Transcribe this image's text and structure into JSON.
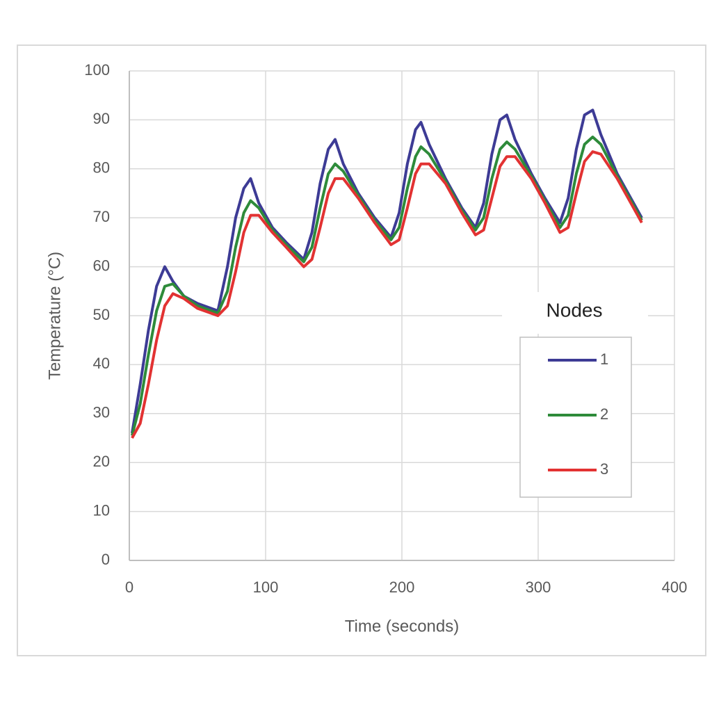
{
  "chart_data": {
    "type": "line",
    "x_label": "Time (seconds)",
    "y_label": "Temperature  (°C)",
    "xlim": [
      0,
      400
    ],
    "xticks": [
      0,
      100,
      200,
      300,
      400
    ],
    "ylim": [
      0,
      100
    ],
    "yticks": [
      0,
      10,
      20,
      30,
      40,
      50,
      60,
      70,
      80,
      90,
      100
    ],
    "grid": true,
    "legend_title": "Nodes",
    "legend_position": "right",
    "x": [
      2,
      8,
      14,
      20,
      26,
      32,
      40,
      50,
      65,
      72,
      78,
      84,
      89,
      95,
      105,
      115,
      128,
      134,
      140,
      146,
      151,
      157,
      168,
      180,
      192,
      198,
      204,
      210,
      214,
      220,
      232,
      244,
      254,
      260,
      266,
      272,
      277,
      283,
      295,
      305,
      316,
      322,
      328,
      334,
      340,
      346,
      358,
      368,
      376
    ],
    "series": [
      {
        "name": "1",
        "color": "#3d3b95",
        "values": [
          26,
          36,
          47,
          56,
          60,
          57,
          54,
          52.5,
          51,
          60,
          70,
          76,
          78,
          73,
          68,
          65,
          61.5,
          67,
          77,
          84,
          86,
          81,
          75,
          70,
          66,
          71,
          81,
          88,
          89.5,
          85,
          78,
          72,
          68,
          73,
          83,
          90,
          91,
          86,
          79,
          74,
          69,
          74,
          84,
          91,
          92,
          87,
          79,
          74,
          70
        ]
      },
      {
        "name": "2",
        "color": "#2e8b3a",
        "values": [
          25.5,
          32,
          42,
          51,
          56,
          56.5,
          54,
          52,
          50.5,
          55,
          64,
          71,
          73.5,
          72,
          67.5,
          64.5,
          61,
          64,
          72,
          79,
          81,
          79.5,
          74.5,
          69.5,
          65.5,
          68,
          76,
          82.5,
          84.5,
          83,
          77.5,
          71.5,
          67.5,
          70,
          78,
          84,
          85.5,
          84,
          78.5,
          73.5,
          68,
          70.5,
          79,
          85,
          86.5,
          85,
          78.5,
          73.5,
          69.5
        ]
      },
      {
        "name": "3",
        "color": "#e23232",
        "values": [
          25,
          28,
          36,
          45,
          52,
          54.5,
          53.5,
          51.5,
          50,
          52,
          59,
          67,
          70.5,
          70.5,
          67,
          64,
          60,
          61.5,
          68,
          75,
          78,
          78,
          74,
          69,
          64.5,
          65.5,
          72,
          79,
          81,
          81,
          77,
          71,
          66.5,
          67.5,
          74,
          80.5,
          82.5,
          82.5,
          78,
          73,
          67,
          68,
          75,
          81.5,
          83.5,
          83,
          78,
          73,
          69
        ]
      }
    ]
  }
}
